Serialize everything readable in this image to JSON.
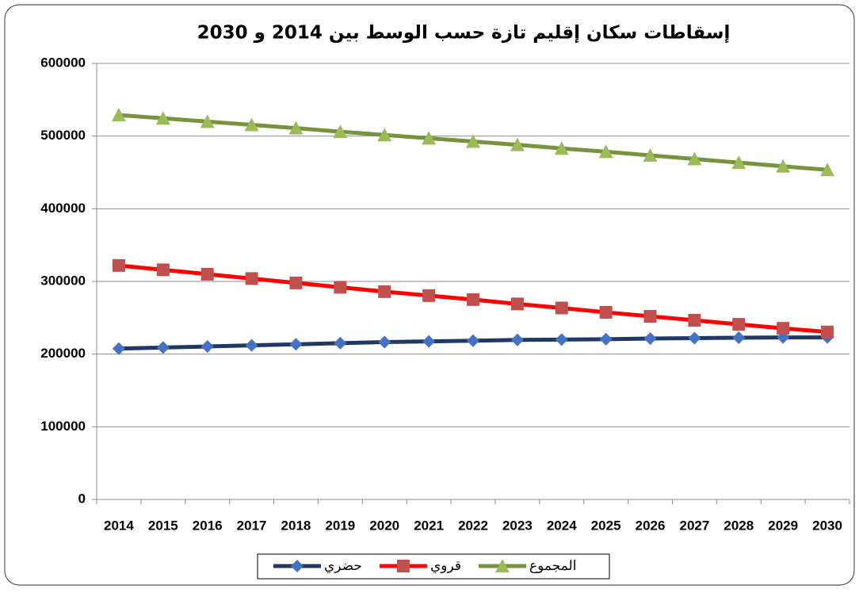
{
  "chart_data": {
    "type": "line",
    "title": "إسقاطات سكان إقليم تازة حسب الوسط بين 2014 و 2030",
    "categories": [
      "2014",
      "2015",
      "2016",
      "2017",
      "2018",
      "2019",
      "2020",
      "2021",
      "2022",
      "2023",
      "2024",
      "2025",
      "2026",
      "2027",
      "2028",
      "2029",
      "2030"
    ],
    "series": [
      {
        "name": "حضري",
        "color": "#1f3864",
        "marker_color": "#4472c4",
        "marker": "diamond",
        "values": [
          207500,
          209000,
          210500,
          212000,
          213500,
          215000,
          216500,
          217500,
          218500,
          219500,
          220000,
          220500,
          221500,
          222000,
          222500,
          223000,
          223000
        ]
      },
      {
        "name": "قروي",
        "color": "#ff0000",
        "marker_color": "#c0504d",
        "marker": "square",
        "values": [
          322000,
          316000,
          310000,
          304000,
          298000,
          292000,
          286000,
          280500,
          275000,
          269000,
          263500,
          257500,
          252000,
          246500,
          241000,
          235500,
          230500
        ]
      },
      {
        "name": "المجموع",
        "color": "#77933c",
        "marker_color": "#9bbb59",
        "marker": "triangle",
        "values": [
          529000,
          524500,
          520000,
          515500,
          511000,
          506000,
          501500,
          497000,
          492500,
          488000,
          483000,
          478500,
          473500,
          468500,
          463500,
          458500,
          453500
        ]
      }
    ],
    "ylim": [
      0,
      600000
    ],
    "yticks": [
      0,
      100000,
      200000,
      300000,
      400000,
      500000,
      600000
    ],
    "grid": true,
    "legend": "bottom"
  }
}
